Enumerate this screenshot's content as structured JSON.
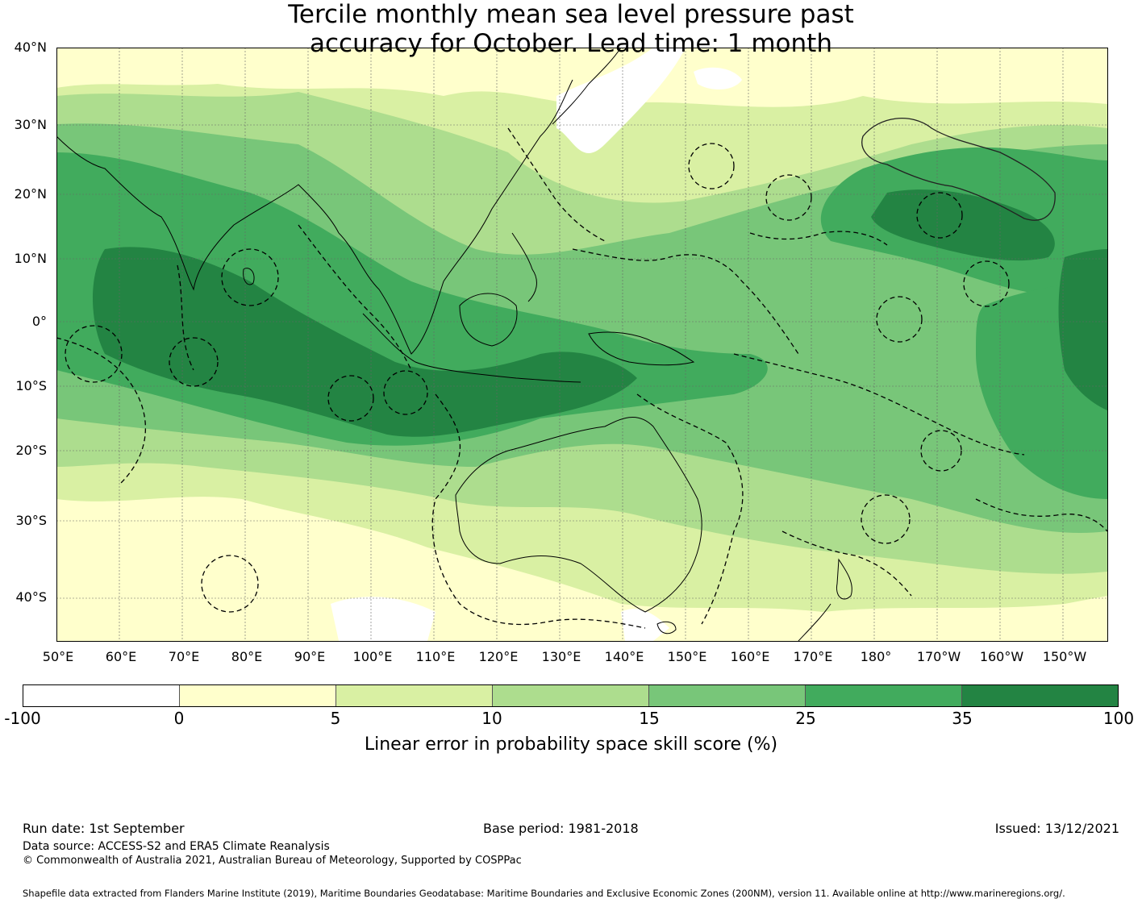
{
  "title": {
    "line1": "Tercile monthly mean sea level pressure past",
    "line2": "accuracy for October. Lead time: 1 month"
  },
  "map": {
    "lat_labels": [
      "40°N",
      "30°N",
      "20°N",
      "10°N",
      "0°",
      "10°S",
      "20°S",
      "30°S",
      "40°S"
    ],
    "lon_labels": [
      "50°E",
      "60°E",
      "70°E",
      "80°E",
      "90°E",
      "100°E",
      "110°E",
      "120°E",
      "130°E",
      "140°E",
      "150°E",
      "160°E",
      "170°E",
      "180°",
      "170°W",
      "160°W",
      "150°W"
    ],
    "projection": "plate carree",
    "gridlines": true,
    "colors": {
      "ocean_base": "#d9f0a3",
      "coastline": "#000000",
      "eez_boundary": "#000000"
    }
  },
  "colorbar": {
    "ticks": [
      "-100",
      "0",
      "5",
      "10",
      "15",
      "25",
      "35",
      "100"
    ],
    "colors": [
      "#ffffff",
      "#ffffcc",
      "#d9f0a3",
      "#addd8e",
      "#78c679",
      "#41ab5d",
      "#238443"
    ],
    "label": "Linear error in probability space skill score (%)"
  },
  "footer": {
    "run_date": "Run date: 1st September",
    "base_period": "Base period: 1981-2018",
    "issued": "Issued: 13/12/2021",
    "data_source": "Data source: ACCESS-S2 and ERA5 Climate Reanalysis",
    "copyright": "© Commonwealth of Australia 2021, Australian Bureau of Meteorology, Supported by COSPPac",
    "shapefile": "Shapefile data extracted from Flanders Marine Institute (2019), Maritime Boundaries Geodatabase: Maritime Boundaries and Exclusive Economic Zones (200NM), version 11. Available online at http://www.marineregions.org/."
  }
}
